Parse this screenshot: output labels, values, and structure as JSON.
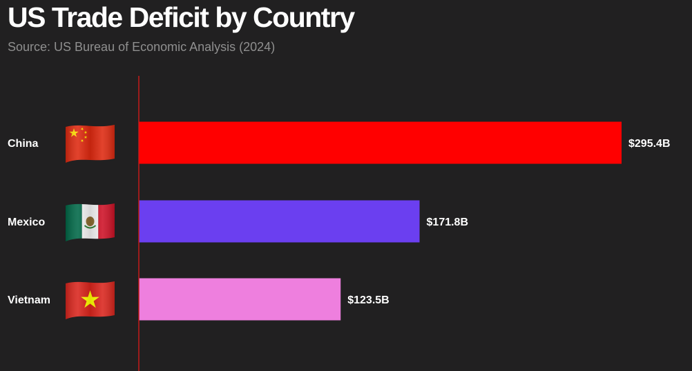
{
  "chart_data": {
    "type": "bar",
    "orientation": "horizontal",
    "title": "US Trade Deficit by Country",
    "subtitle": "Source: US Bureau of Economic Analysis (2024)",
    "categories": [
      "China",
      "Mexico",
      "Vietnam"
    ],
    "values": [
      295.4,
      171.8,
      123.5
    ],
    "value_labels": [
      "$295.4B",
      "$171.8B",
      "$123.5B"
    ],
    "bar_colors": [
      "#ff0000",
      "#6b3ff0",
      "#ee7fde"
    ],
    "flag_icons": [
      "china-flag-icon",
      "mexico-flag-icon",
      "vietnam-flag-icon"
    ],
    "xlim": [
      0,
      295.4
    ],
    "grid": false,
    "axis_color": "#c51b1b"
  }
}
